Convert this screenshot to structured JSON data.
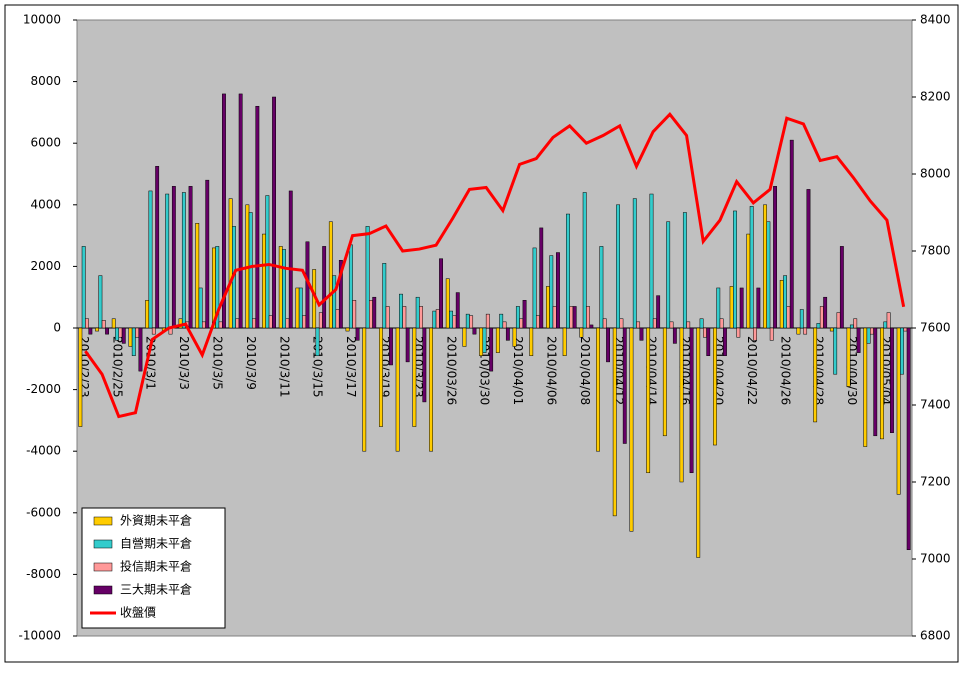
{
  "chart_data": {
    "type": "bar_line",
    "categories": [
      "2010/2/23",
      null,
      "2010/2/25",
      null,
      "2010/3/1",
      null,
      "2010/3/3",
      null,
      "2010/3/5",
      null,
      "2010/3/9",
      null,
      "2010/3/11",
      null,
      "2010/3/15",
      null,
      "2010/3/17",
      null,
      "2010/3/19",
      null,
      "2010/3/23",
      null,
      "2010/03/26",
      null,
      "2010/03/30",
      null,
      "2010/04/01",
      null,
      "2010/04/06",
      null,
      "2010/04/08",
      null,
      "2010/04/12",
      null,
      "2010/04/14",
      null,
      "2010/04/16",
      null,
      "2010/04/20",
      null,
      "2010/04/22",
      null,
      "2010/04/26",
      null,
      "2010/04/28",
      null,
      "2010/04/30",
      null,
      "2010/05/04",
      null
    ],
    "series": [
      {
        "name": "外資期未平倉",
        "color": "#ffcc00",
        "values": [
          -3200,
          -100,
          300,
          -600,
          900,
          -100,
          300,
          3400,
          2600,
          4200,
          4000,
          3050,
          2650,
          1300,
          1900,
          3450,
          -100,
          -4000,
          -3200,
          -4000,
          -3200,
          -4000,
          1600,
          -600,
          -900,
          -800,
          -600,
          -900,
          1350,
          -900,
          -300,
          -4000,
          -6100,
          -6600,
          -4700,
          -3500,
          -5000,
          -7450,
          -3800,
          1350,
          3050,
          4000,
          1550,
          -200,
          -3050,
          -100,
          -1900,
          -3850,
          -3600,
          -5400
        ]
      },
      {
        "name": "自營期未平倉",
        "color": "#33cccc",
        "values": [
          2650,
          1700,
          -400,
          -900,
          4450,
          4350,
          4400,
          1300,
          2650,
          3300,
          3750,
          4300,
          2550,
          1300,
          -900,
          1700,
          2700,
          3300,
          2100,
          1100,
          1000,
          550,
          550,
          450,
          -800,
          450,
          700,
          2600,
          2350,
          3700,
          4400,
          2650,
          4000,
          4200,
          4350,
          3450,
          3750,
          300,
          1300,
          3800,
          3950,
          3450,
          1700,
          600,
          150,
          -1500,
          100,
          -500,
          200,
          -1500
        ]
      },
      {
        "name": "投信期未平倉",
        "color": "#ff9999",
        "values": [
          300,
          250,
          -300,
          -300,
          -200,
          -200,
          200,
          200,
          200,
          300,
          300,
          400,
          300,
          400,
          500,
          600,
          900,
          900,
          700,
          700,
          700,
          600,
          400,
          400,
          450,
          200,
          300,
          400,
          700,
          700,
          700,
          300,
          300,
          200,
          300,
          200,
          200,
          -300,
          300,
          -300,
          -400,
          -400,
          700,
          -200,
          700,
          500,
          300,
          -200,
          500,
          -100
        ]
      },
      {
        "name": "三大期未平倉",
        "color": "#660066",
        "values": [
          -200,
          -200,
          -500,
          -1400,
          5250,
          4600,
          4600,
          4800,
          7600,
          7600,
          7200,
          7500,
          4450,
          2800,
          2650,
          2200,
          -400,
          1000,
          -1200,
          -1100,
          -2400,
          2250,
          1150,
          -200,
          -1400,
          -400,
          900,
          3250,
          2450,
          700,
          100,
          -1100,
          -3750,
          -400,
          1050,
          -500,
          -4700,
          -900,
          -900,
          1300,
          1300,
          4600,
          6100,
          4500,
          1000,
          2650,
          -800,
          -3500,
          -3400,
          -7200
        ]
      },
      {
        "name": "收盤價",
        "color": "#ff0000",
        "type": "line",
        "axis": "y2",
        "values": [
          7540,
          7480,
          7370,
          7380,
          7570,
          7600,
          7610,
          7530,
          7650,
          7750,
          7760,
          7765,
          7755,
          7750,
          7660,
          7700,
          7840,
          7845,
          7865,
          7800,
          7805,
          7815,
          7885,
          7960,
          7965,
          7905,
          8025,
          8040,
          8095,
          8125,
          8080,
          8100,
          8125,
          8020,
          8110,
          8155,
          8100,
          7825,
          7880,
          7980,
          7925,
          7960,
          8145,
          8130,
          8035,
          8045,
          7990,
          7930,
          7880,
          7655
        ]
      }
    ],
    "ylim": [
      -10000,
      10000
    ],
    "yticks": [
      -10000,
      -8000,
      -6000,
      -4000,
      -2000,
      0,
      2000,
      4000,
      6000,
      8000,
      10000
    ],
    "y2lim": [
      6800,
      8400
    ],
    "y2ticks": [
      6800,
      7000,
      7200,
      7400,
      7600,
      7800,
      8000,
      8200,
      8400
    ],
    "legend": "lower left",
    "background": "#c0c0c0"
  }
}
